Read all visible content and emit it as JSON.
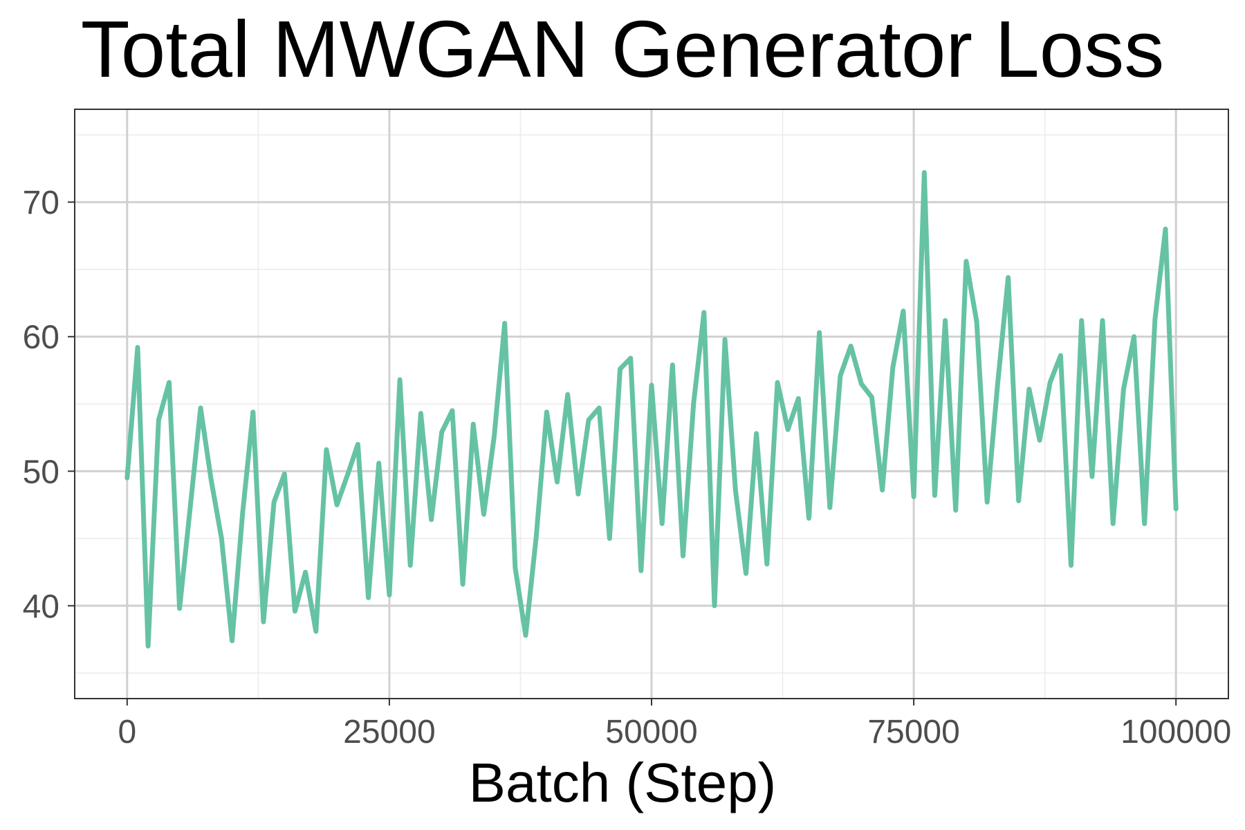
{
  "chart_data": {
    "type": "line",
    "title": "Total MWGAN Generator Loss",
    "xlabel": "Batch (Step)",
    "ylabel": "",
    "xlim": [
      -5000,
      105000
    ],
    "ylim": [
      33.1,
      76.9
    ],
    "x_ticks": [
      0,
      25000,
      50000,
      75000,
      100000
    ],
    "x_tick_labels": [
      "0",
      "25000",
      "50000",
      "75000",
      "100000"
    ],
    "y_ticks": [
      40,
      50,
      60,
      70
    ],
    "y_tick_labels": [
      "40",
      "50",
      "60",
      "70"
    ],
    "grid": true,
    "theme": "bw",
    "series": [
      {
        "color": "#66c2a5",
        "x": [
          0,
          1000,
          2000,
          3000,
          4000,
          5000,
          6000,
          7000,
          8000,
          9000,
          10000,
          11000,
          12000,
          13000,
          14000,
          15000,
          16000,
          17000,
          18000,
          19000,
          20000,
          21000,
          22000,
          23000,
          24000,
          25000,
          26000,
          27000,
          28000,
          29000,
          30000,
          31000,
          32000,
          33000,
          34000,
          35000,
          36000,
          37000,
          38000,
          39000,
          40000,
          41000,
          42000,
          43000,
          44000,
          45000,
          46000,
          47000,
          48000,
          49000,
          50000,
          51000,
          52000,
          53000,
          54000,
          55000,
          56000,
          57000,
          58000,
          59000,
          60000,
          61000,
          62000,
          63000,
          64000,
          65000,
          66000,
          67000,
          68000,
          69000,
          70000,
          71000,
          72000,
          73000,
          74000,
          75000,
          76000,
          77000,
          78000,
          79000,
          80000,
          81000,
          82000,
          83000,
          84000,
          85000,
          86000,
          87000,
          88000,
          89000,
          90000,
          91000,
          92000,
          93000,
          94000,
          95000,
          96000,
          97000,
          98000,
          99000,
          100000
        ],
        "values": [
          49.5,
          59.2,
          37.0,
          53.8,
          56.6,
          39.8,
          47.2,
          54.7,
          49.4,
          45.0,
          37.4,
          46.8,
          54.4,
          38.8,
          47.7,
          49.8,
          39.6,
          42.5,
          38.1,
          51.6,
          47.5,
          49.7,
          52.0,
          40.6,
          50.6,
          40.8,
          56.8,
          43.0,
          54.3,
          46.4,
          52.9,
          54.5,
          41.6,
          53.5,
          46.8,
          52.6,
          61.0,
          42.8,
          37.8,
          45.1,
          54.4,
          49.2,
          55.7,
          48.3,
          53.8,
          54.7,
          45.0,
          57.6,
          58.4,
          42.6,
          56.4,
          46.1,
          57.9,
          43.7,
          55.0,
          61.8,
          40.0,
          59.8,
          48.6,
          42.4,
          52.8,
          43.1,
          56.6,
          53.1,
          55.4,
          46.5,
          60.3,
          47.3,
          57.1,
          59.3,
          56.5,
          55.5,
          48.6,
          57.7,
          61.9,
          48.1,
          72.2,
          48.2,
          61.2,
          47.1,
          65.6,
          61.1,
          47.7,
          56.5,
          64.4,
          47.8,
          56.1,
          52.3,
          56.6,
          58.6,
          43.0,
          61.2,
          49.6,
          61.2,
          46.1,
          56.1,
          60.0,
          46.1,
          61.3,
          68.0,
          47.2
        ],
        "line_width": 7
      }
    ]
  }
}
